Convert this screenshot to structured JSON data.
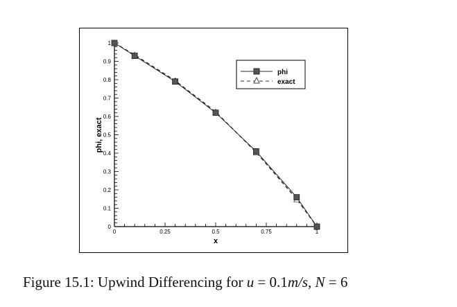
{
  "chart_data": {
    "type": "line",
    "title": "",
    "xlabel": "x",
    "ylabel": "phi, exact",
    "xlim": [
      0,
      1
    ],
    "ylim": [
      0,
      1
    ],
    "grid": false,
    "legend_position": "upper-right (inside plot)",
    "x_ticks": [
      "0",
      "0.25",
      "0.5",
      "0.75",
      "1"
    ],
    "y_ticks": [
      "0",
      "0.1",
      "0.2",
      "0.3",
      "0.4",
      "0.5",
      "0.6",
      "0.7",
      "0.8",
      "0.9",
      "1"
    ],
    "x": [
      0,
      0.1,
      0.3,
      0.5,
      0.7,
      0.9,
      1.0
    ],
    "series": [
      {
        "name": "phi",
        "style": "solid",
        "marker": "filled-square",
        "values": [
          1.0,
          0.93,
          0.79,
          0.62,
          0.41,
          0.16,
          0.0
        ]
      },
      {
        "name": "exact",
        "style": "dashed",
        "marker": "open-triangle",
        "values": [
          1.0,
          0.935,
          0.795,
          0.625,
          0.405,
          0.15,
          0.0
        ]
      }
    ]
  },
  "legend": {
    "items": [
      {
        "label": "phi"
      },
      {
        "label": "exact"
      }
    ]
  },
  "axes": {
    "xlabel": "x",
    "ylabel": "phi, exact"
  },
  "caption": {
    "prefix": "Figure 15.1: Upwind Differencing for ",
    "math1": "u",
    "eq1": " = 0.1",
    "math2": "m/s",
    "sep": ", ",
    "math3": "N",
    "eq2": " = 6"
  },
  "colors": {
    "line": "#2a2a2a",
    "marker_fill": "#555555",
    "axis": "#000000"
  }
}
